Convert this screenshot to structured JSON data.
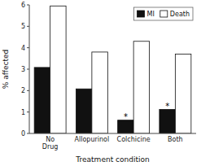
{
  "chart_data": {
    "type": "bar",
    "categories": [
      "No\nDrug",
      "Allopurinol",
      "Colchicine",
      "Both"
    ],
    "series": [
      {
        "name": "MI",
        "color": "#111111",
        "values": [
          3.08,
          2.08,
          0.62,
          1.12
        ]
      },
      {
        "name": "Death",
        "color": "#ffffff",
        "values": [
          5.95,
          3.8,
          4.3,
          3.7
        ]
      }
    ],
    "xlabel": "Treatment condition",
    "ylabel": "% affected",
    "ylim": [
      0,
      6
    ],
    "yticks": [
      0,
      1,
      2,
      3,
      4,
      5,
      6
    ],
    "annotations": [
      {
        "text": "*",
        "category": "Colchicine",
        "series": "MI"
      },
      {
        "text": "*",
        "category": "Both",
        "series": "MI"
      }
    ],
    "legend": "upper right",
    "grid": false
  }
}
